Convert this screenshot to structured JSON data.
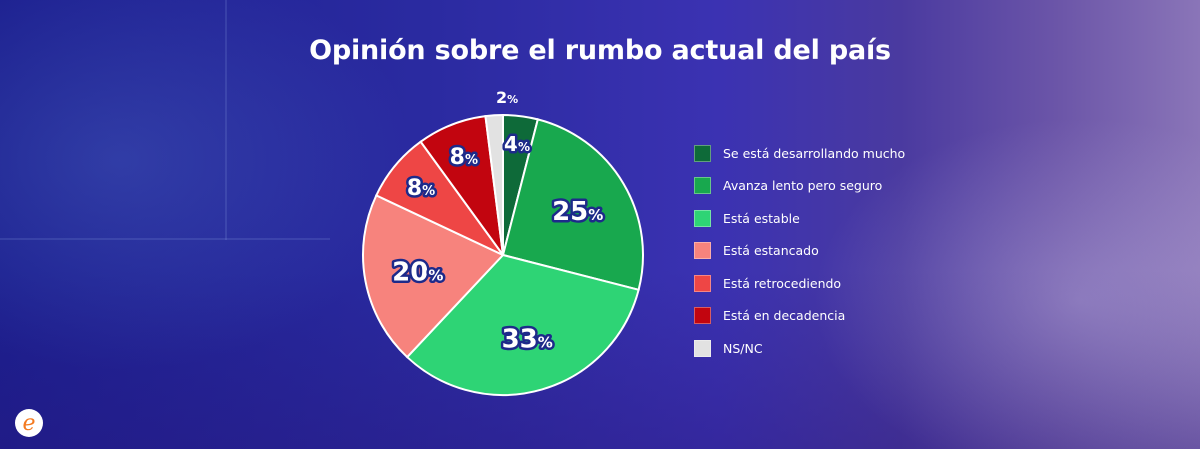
{
  "title": "Opinión sobre el rumbo actual del país",
  "chart_data": {
    "type": "pie",
    "title": "Opinión sobre el rumbo actual del país",
    "legend_position": "right",
    "slices": [
      {
        "label": "Se está desarrollando mucho",
        "value": 4,
        "display": "4",
        "color": "#0e6a39"
      },
      {
        "label": "Avanza lento pero seguro",
        "value": 25,
        "display": "25",
        "color": "#18a84e"
      },
      {
        "label": "Está estable",
        "value": 33,
        "display": "33",
        "color": "#2ed475"
      },
      {
        "label": "Está estancado",
        "value": 20,
        "display": "20",
        "color": "#f7837d"
      },
      {
        "label": "Está retrocediendo",
        "value": 8,
        "display": "8",
        "color": "#ee4645"
      },
      {
        "label": "Está en decadencia",
        "value": 8,
        "display": "8",
        "color": "#c2050f"
      },
      {
        "label": "NS/NC",
        "value": 2,
        "display": "2",
        "color": "#e2e2e2"
      }
    ],
    "percent_suffix": "%"
  }
}
